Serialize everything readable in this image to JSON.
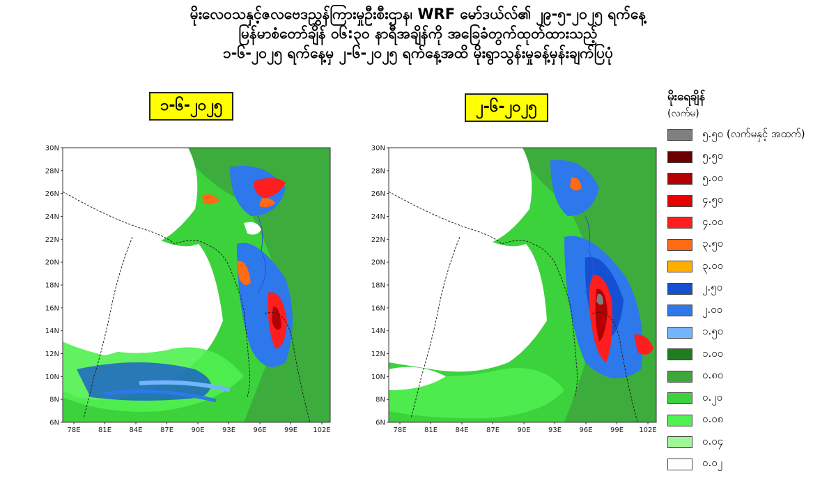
{
  "header": {
    "line1": "မိုးလေဝသနှင့်ဇလဗေဒညွှန်ကြားမှုဦးစီးဌာန၊ WRF မော်ဒယ်လ်၏ ၂၉-၅-၂၀၂၅ ရက်နေ့",
    "line2": "မြန်မာစံတော်ချိန် ၀၆:၃၀ နာရီအချိန်ကို အခြေခံတွက်ထုတ်ထားသည့်",
    "line3": "၁-၆-၂၀၂၅ ရက်နေ့မှ ၂-၆-၂၀၂၅ ရက်နေ့အထိ မိုးရွာသွန်းမှုခန့်မှန်းချက်ပြပုံ"
  },
  "maps": [
    {
      "date_label": "၁-၆-၂၀၂၅",
      "lat_ticks": [
        "30N",
        "28N",
        "26N",
        "24N",
        "22N",
        "20N",
        "18N",
        "16N",
        "14N",
        "12N",
        "10N",
        "8N",
        "6N"
      ],
      "lon_ticks": [
        "78E",
        "81E",
        "84E",
        "87E",
        "90E",
        "93E",
        "96E",
        "99E",
        "102E"
      ]
    },
    {
      "date_label": "၂-၆-၂၀၂၅",
      "lat_ticks": [
        "30N",
        "28N",
        "26N",
        "24N",
        "22N",
        "20N",
        "18N",
        "16N",
        "14N",
        "12N",
        "10N",
        "8N",
        "6N"
      ],
      "lon_ticks": [
        "78E",
        "81E",
        "84E",
        "87E",
        "90E",
        "93E",
        "96E",
        "99E",
        "102E"
      ]
    }
  ],
  "legend": {
    "title": "မိုးရေချိန်",
    "unit": "(လက်မ)",
    "items": [
      {
        "label": "၅.၅၀ (လက်မနှင့် အထက်)",
        "color": "#7f7f7f"
      },
      {
        "label": "၅.၅၀",
        "color": "#6b0000"
      },
      {
        "label": "၅.၀၀",
        "color": "#b40000"
      },
      {
        "label": "၄.၅၀",
        "color": "#e60000"
      },
      {
        "label": "၄.၀၀",
        "color": "#ff1e1e"
      },
      {
        "label": "၃.၅၀",
        "color": "#ff6a14"
      },
      {
        "label": "၃.၀၀",
        "color": "#ffae00"
      },
      {
        "label": "၂.၅၀",
        "color": "#1550d2"
      },
      {
        "label": "၂.၀၀",
        "color": "#2d78eb"
      },
      {
        "label": "၁.၅၀",
        "color": "#73b4ff"
      },
      {
        "label": "၁.၀၀",
        "color": "#1e7d1e"
      },
      {
        "label": "၀.၈၀",
        "color": "#3ca83c"
      },
      {
        "label": "၀.၂၀",
        "color": "#3cd23c"
      },
      {
        "label": "၀.၀၈",
        "color": "#50f050"
      },
      {
        "label": "၀.၀၄",
        "color": "#a0f596"
      },
      {
        "label": "၀.၀၂",
        "color": "#ffffff"
      }
    ]
  }
}
